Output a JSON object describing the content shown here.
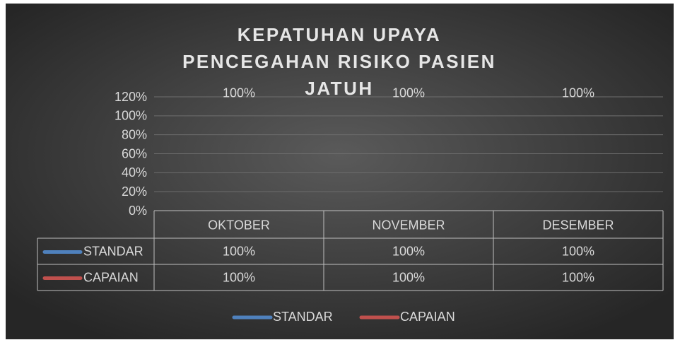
{
  "chart_data": {
    "type": "line",
    "title": "KEPATUHAN UPAYA PENCEGAHAN RISIKO PASIEN JATUH",
    "categories": [
      "OKTOBER",
      "NOVEMBER",
      "DESEMBER"
    ],
    "series": [
      {
        "name": "STANDAR",
        "color": "#4f81bd",
        "values": [
          100,
          100,
          100
        ],
        "value_labels": [
          "100%",
          "100%",
          "100%"
        ]
      },
      {
        "name": "CAPAIAN",
        "color": "#c0504d",
        "values": [
          100,
          100,
          100
        ],
        "value_labels": [
          "100%",
          "100%",
          "100%"
        ]
      }
    ],
    "ylim": [
      0,
      120
    ],
    "yticks": [
      {
        "value": 0,
        "label": "0%"
      },
      {
        "value": 20,
        "label": "20%"
      },
      {
        "value": 40,
        "label": "40%"
      },
      {
        "value": 60,
        "label": "60%"
      },
      {
        "value": 80,
        "label": "80%"
      },
      {
        "value": 100,
        "label": "100%"
      },
      {
        "value": 120,
        "label": "120%"
      }
    ],
    "grid": true,
    "data_table": true,
    "legend": "bottom"
  }
}
